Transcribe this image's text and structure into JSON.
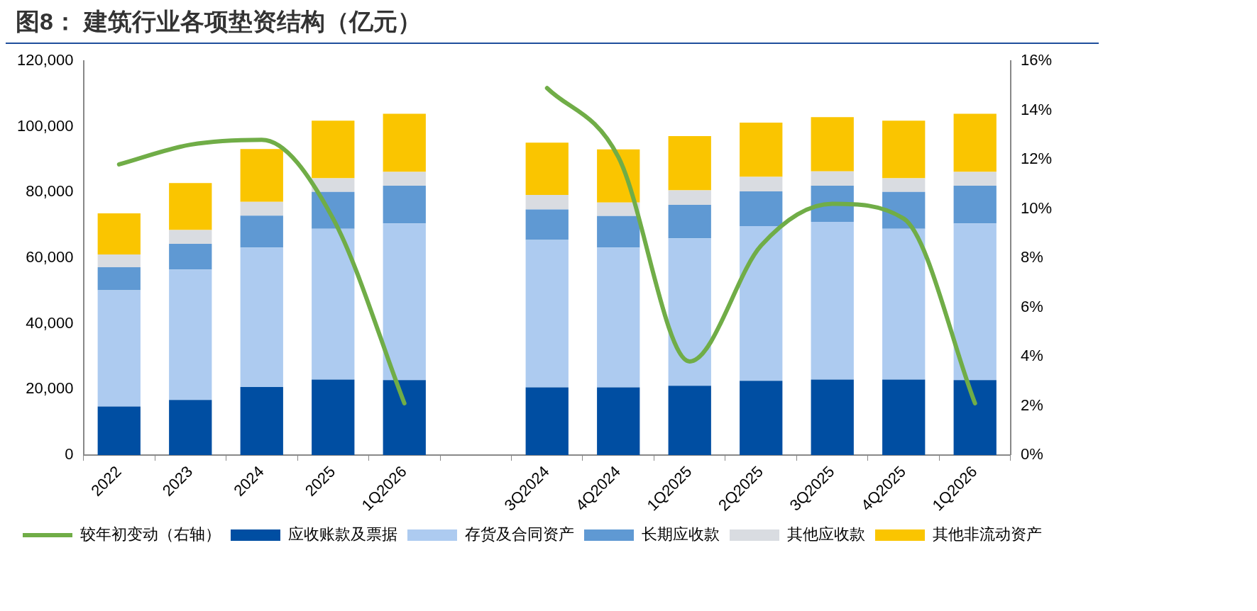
{
  "chart_data": {
    "type": "bar",
    "title": "图8： 建筑行业各项垫资结构（亿元）",
    "categories": [
      "2022",
      "2023",
      "2024",
      "2025",
      "1Q2026",
      null,
      "3Q2024",
      "4Q2024",
      "1Q2025",
      "2Q2025",
      "3Q2025",
      "4Q2025",
      "1Q2026"
    ],
    "stacked": true,
    "series": [
      {
        "name": "应收账款及票据",
        "color": "#004ea2",
        "values": [
          14800,
          16800,
          20700,
          23000,
          22800,
          null,
          20600,
          20600,
          21100,
          22600,
          23000,
          23000,
          22800
        ]
      },
      {
        "name": "存货及合同资产",
        "color": "#adcbf0",
        "values": [
          35400,
          39700,
          42500,
          45900,
          47700,
          null,
          44900,
          42600,
          44900,
          47100,
          48000,
          45900,
          47700
        ]
      },
      {
        "name": "长期应收款",
        "color": "#5f99d3",
        "values": [
          7000,
          7800,
          9700,
          11200,
          11500,
          null,
          9300,
          9600,
          10200,
          10600,
          11000,
          11200,
          11500
        ]
      },
      {
        "name": "其他应收款",
        "color": "#d9dce1",
        "values": [
          3900,
          4200,
          4200,
          4200,
          4200,
          null,
          4400,
          4100,
          4400,
          4400,
          4400,
          4200,
          4200
        ]
      },
      {
        "name": "其他非流动资产",
        "color": "#fac500",
        "values": [
          12500,
          14300,
          16100,
          17500,
          17700,
          null,
          15900,
          16200,
          16500,
          16500,
          16500,
          17500,
          17700
        ]
      },
      {
        "name": "较年初变动（右轴）",
        "type": "line",
        "axis": "y2",
        "color": "#70ad47",
        "values": [
          11.8,
          12.6,
          12.8,
          9.6,
          2.1,
          null,
          14.9,
          12.1,
          3.8,
          8.5,
          10.2,
          9.6,
          2.1
        ]
      }
    ],
    "ylim": [
      0,
      120000
    ],
    "yticks": [
      {
        "value": 0,
        "label": "0"
      },
      {
        "value": 20000,
        "label": "20,000"
      },
      {
        "value": 40000,
        "label": "40,000"
      },
      {
        "value": 60000,
        "label": "60,000"
      },
      {
        "value": 80000,
        "label": "80,000"
      },
      {
        "value": 100000,
        "label": "100,000"
      },
      {
        "value": 120000,
        "label": "120,000"
      }
    ],
    "y2lim": [
      0,
      16
    ],
    "y2ticks": [
      {
        "value": 0,
        "label": "0%"
      },
      {
        "value": 2,
        "label": "2%"
      },
      {
        "value": 4,
        "label": "4%"
      },
      {
        "value": 6,
        "label": "6%"
      },
      {
        "value": 8,
        "label": "8%"
      },
      {
        "value": 10,
        "label": "10%"
      },
      {
        "value": 12,
        "label": "12%"
      },
      {
        "value": 14,
        "label": "14%"
      },
      {
        "value": 16,
        "label": "16%"
      }
    ],
    "grid": false,
    "legend": "bottom",
    "marker": "none",
    "line_style": "solid"
  }
}
